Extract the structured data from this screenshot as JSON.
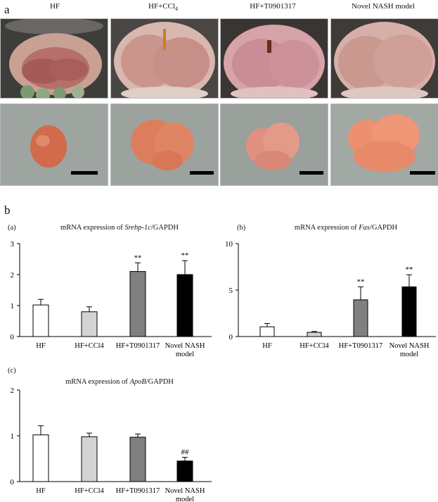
{
  "panel_a": {
    "letter": "a",
    "columns": [
      "HF",
      "HF+CCl",
      "HF+T0901317",
      "Novel NASH model"
    ],
    "ccl_subscript": "4",
    "photo_row_top": "mouse-abdomen-photo",
    "photo_row_bottom": "excised-liver-photo"
  },
  "panel_b": {
    "letter": "b"
  },
  "charts": [
    {
      "sub": "(a)",
      "title_pre": "mRNA expression of ",
      "title_gene": "Srebp-1c",
      "title_post": "/GAPDH"
    },
    {
      "sub": "(b)",
      "title_pre": "mRNA expression of ",
      "title_gene": "Fas",
      "title_post": "/GAPDH"
    },
    {
      "sub": "(c)",
      "title_pre": "mRNA expression of ",
      "title_gene": "ApoB",
      "title_post": "/GAPDH"
    }
  ],
  "colors": {
    "hf": "#ffffff",
    "ccl4": "#d3d3d3",
    "t09": "#808080",
    "nash": "#000000"
  },
  "chart_data": [
    {
      "type": "bar",
      "categories": [
        "HF",
        "HF+CCl4",
        "HF+T0901317",
        "Novel NASH\nmodel"
      ],
      "values": [
        1.02,
        0.8,
        2.1,
        2.0
      ],
      "errors": [
        0.18,
        0.16,
        0.28,
        0.45
      ],
      "annotations": [
        "",
        "",
        "**",
        "**"
      ],
      "yticks": [
        0,
        1,
        2,
        3
      ],
      "ylim": [
        0,
        3
      ]
    },
    {
      "type": "bar",
      "categories": [
        "HF",
        "HF+CCl4",
        "HF+T0901317",
        "Novel NASH\nmodel"
      ],
      "values": [
        1.05,
        0.45,
        3.95,
        5.35
      ],
      "errors": [
        0.35,
        0.1,
        1.4,
        1.3
      ],
      "annotations": [
        "",
        "",
        "**",
        "**"
      ],
      "yticks": [
        0,
        5,
        10
      ],
      "ylim": [
        0,
        10
      ]
    },
    {
      "type": "bar",
      "categories": [
        "HF",
        "HF+CCl4",
        "HF+T0901317",
        "Novel NASH\nmodel"
      ],
      "values": [
        1.02,
        0.98,
        0.97,
        0.45
      ],
      "errors": [
        0.2,
        0.08,
        0.07,
        0.08
      ],
      "annotations": [
        "",
        "",
        "",
        "##"
      ],
      "yticks": [
        0,
        1,
        2
      ],
      "ylim": [
        0,
        2
      ]
    }
  ]
}
